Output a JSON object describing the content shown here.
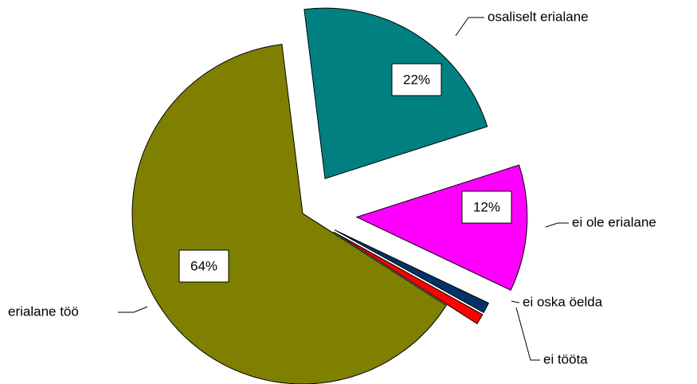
{
  "chart_data": {
    "type": "pie",
    "categories": [
      "erialane töö",
      "osaliselt erialane",
      "ei ole erialane",
      "ei oska öelda",
      "ei tööta"
    ],
    "values": [
      64,
      22,
      12,
      1,
      1
    ],
    "value_labels": [
      "64%",
      "22%",
      "12%",
      null,
      null
    ],
    "colors": [
      "#808000",
      "#008080",
      "#ff00ff",
      "#003366",
      "#ff0000"
    ]
  }
}
